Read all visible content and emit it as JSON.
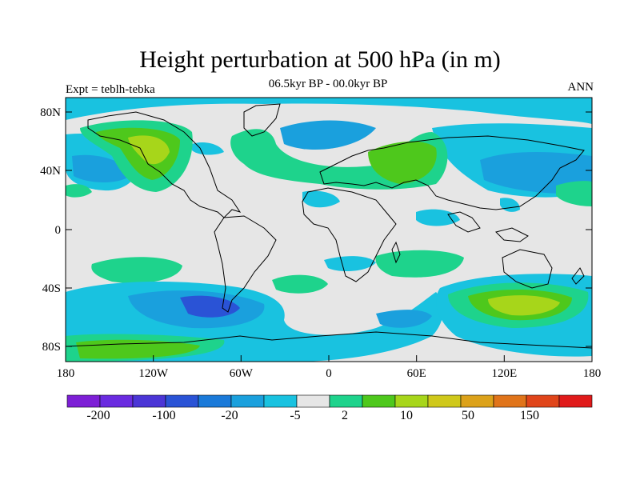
{
  "header": {
    "title": "Height perturbation at 500 hPa (in m)",
    "left_label": "Expt = teblh-tebka",
    "center_label": "06.5kyr BP - 00.0kyr BP",
    "right_label": "ANN"
  },
  "map": {
    "lat_ticks": [
      "80N",
      "40N",
      "0",
      "40S",
      "80S"
    ],
    "lon_ticks": [
      "180",
      "120W",
      "60W",
      "0",
      "60E",
      "120E",
      "180"
    ],
    "background_color": "#e6e6e6"
  },
  "colorbar": {
    "colors": [
      "#7d1fd6",
      "#6a2be0",
      "#4b35d6",
      "#2a53d6",
      "#1a7ad9",
      "#1aa0dd",
      "#19c2e0",
      "#e6e6e6",
      "#1ed38c",
      "#4ec81c",
      "#a7d61a",
      "#cfc81a",
      "#dca21a",
      "#e0741a",
      "#e0451a",
      "#e01a1a"
    ],
    "labels": [
      "-200",
      "-100",
      "-20",
      "-5",
      "2",
      "10",
      "50",
      "150"
    ]
  },
  "field_colors": {
    "neg_weak": "#19c2e0",
    "neg_mid": "#1aa0dd",
    "neg_strong": "#1a7ad9",
    "neg_core": "#2a53d6",
    "pos_weak": "#1ed38c",
    "pos_mid": "#4ec81c",
    "pos_strong": "#a7d61a"
  }
}
